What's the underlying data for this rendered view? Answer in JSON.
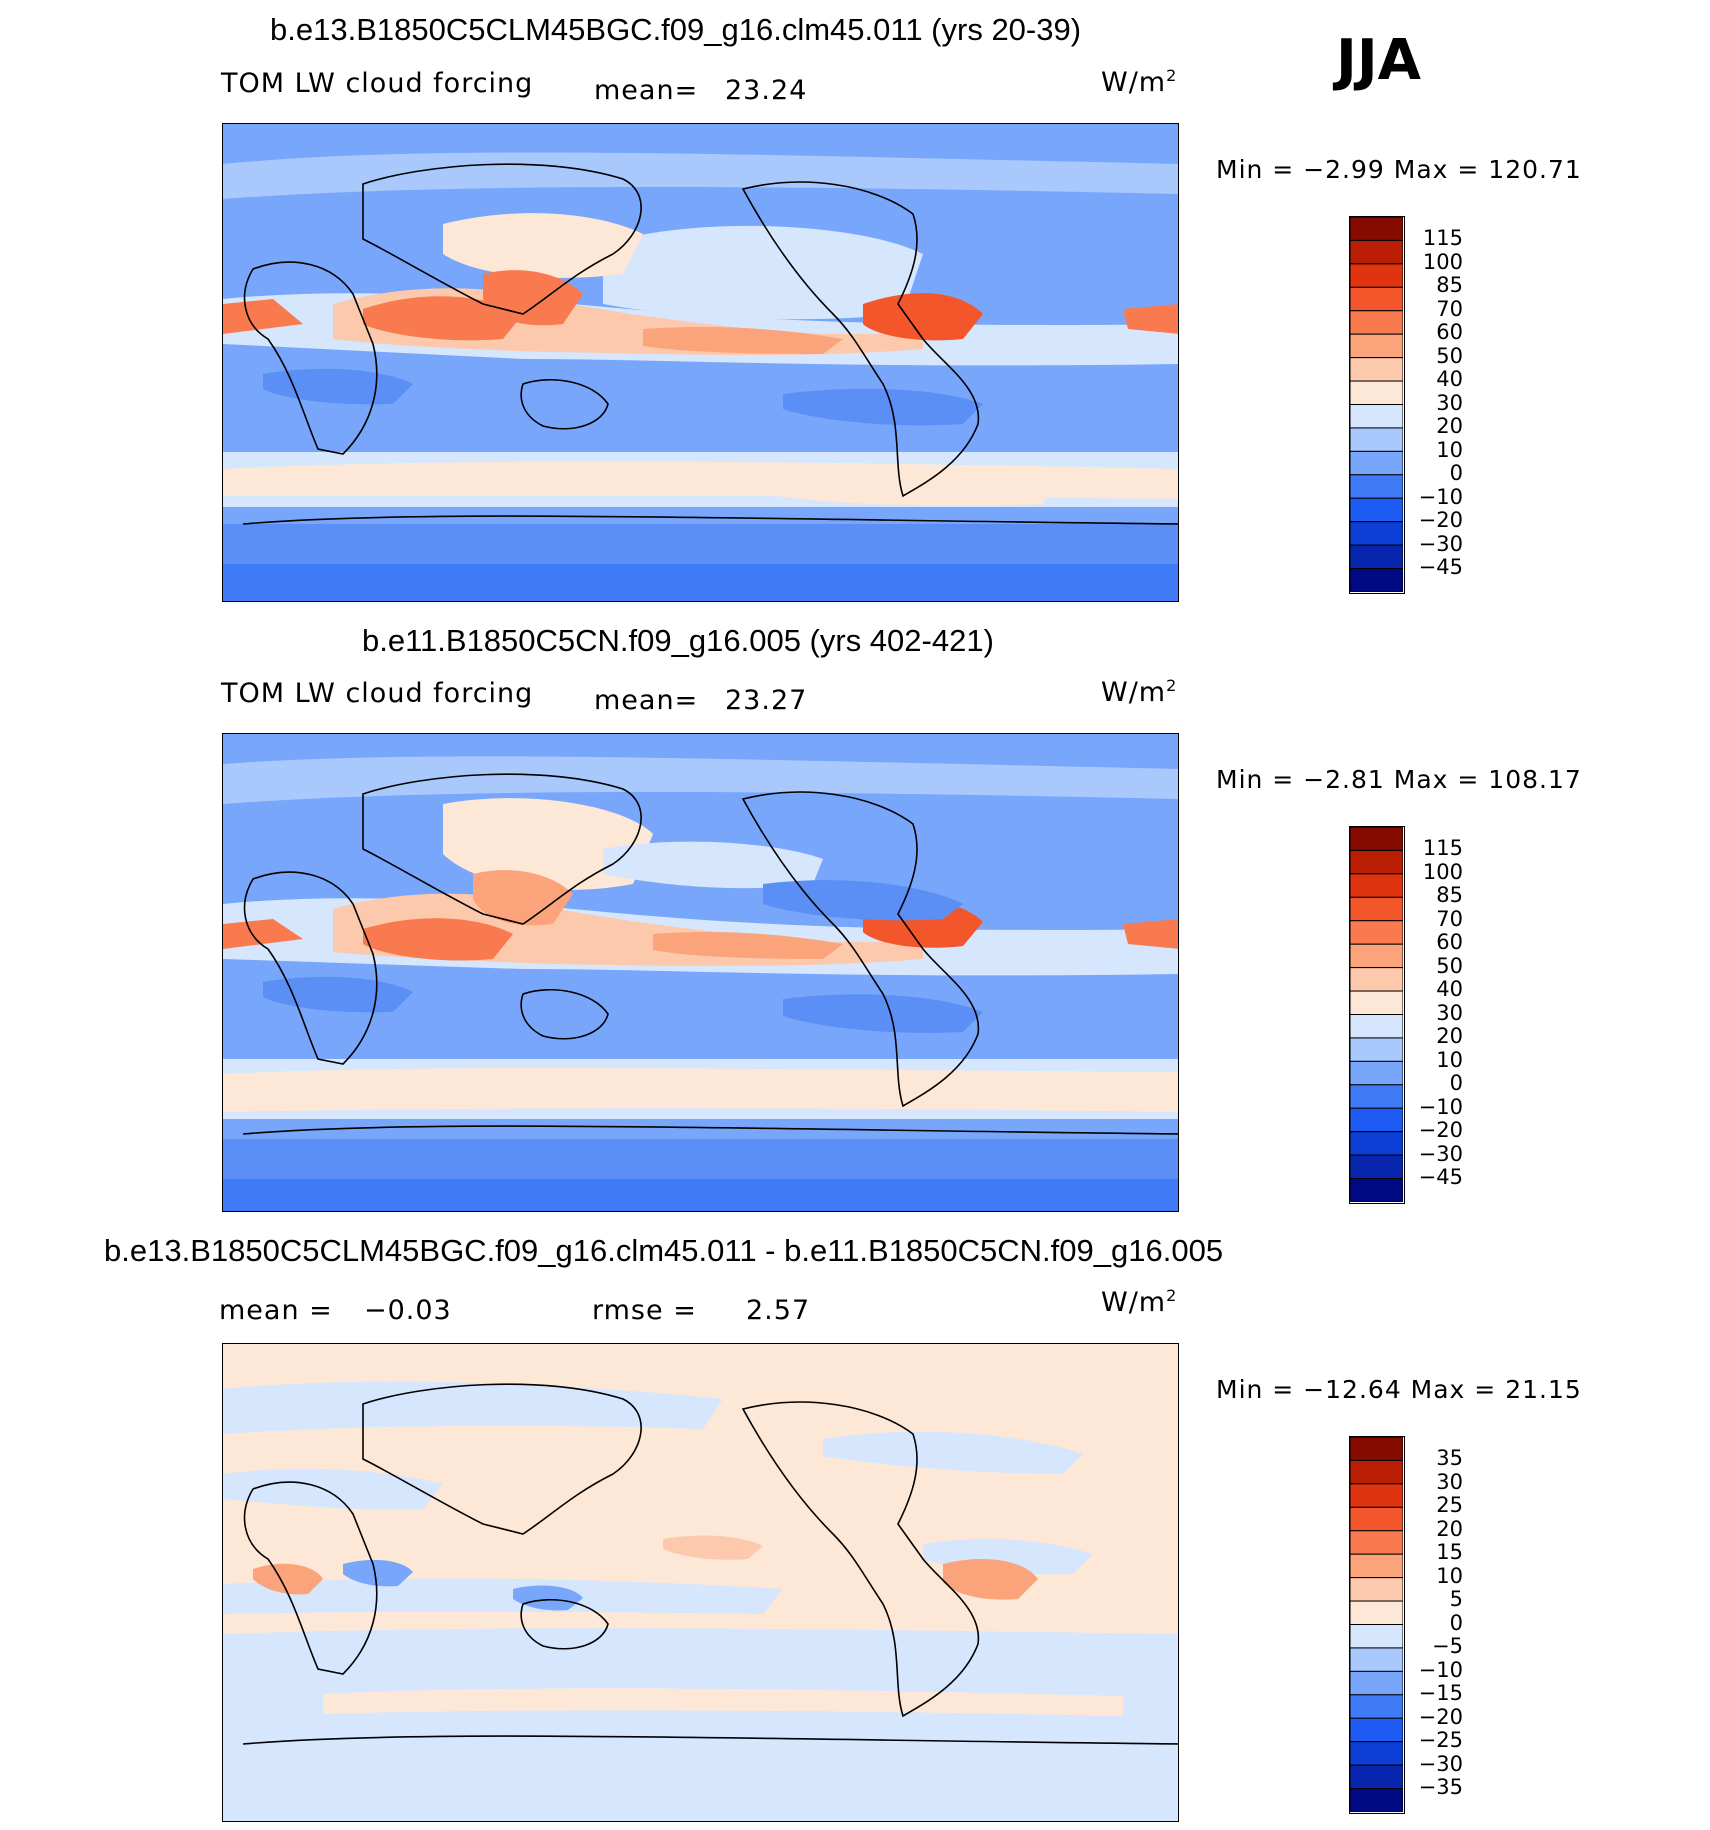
{
  "season": "JJA",
  "units": "W/m",
  "units_exp": "2",
  "panels": [
    {
      "title": "b.e13.B1850C5CLM45BGC.f09_g16.clm45.011 (yrs 20-39)",
      "variable": "TOM LW cloud forcing",
      "mean_label": "mean=",
      "mean_value": "23.24",
      "minmax": "Min =   −2.99  Max  =  120.71"
    },
    {
      "title": "b.e11.B1850C5CN.f09_g16.005 (yrs 402-421)",
      "variable": "TOM LW cloud forcing",
      "mean_label": "mean=",
      "mean_value": "23.27",
      "minmax": "Min =   −2.81  Max  =  108.17"
    },
    {
      "title": "b.e13.B1850C5CLM45BGC.f09_g16.clm45.011 - b.e11.B1850C5CN.f09_g16.005",
      "mean_label": "mean =",
      "mean_value": "−0.03",
      "rmse_label": "rmse =",
      "rmse_value": "2.57",
      "minmax": "Min =  −12.64  Max =    21.15"
    }
  ],
  "chart_data": [
    {
      "type": "heatmap",
      "title": "b.e13.B1850C5CLM45BGC.f09_g16.clm45.011 (yrs 20-39)",
      "subtitle": "TOM LW cloud forcing",
      "units": "W/m2",
      "mean": 23.24,
      "min": -2.99,
      "max": 120.71,
      "colorbar_levels": [
        -45,
        -30,
        -20,
        -10,
        0,
        10,
        20,
        30,
        40,
        50,
        60,
        70,
        85,
        100,
        115
      ],
      "colorbar_colors": [
        "#000a82",
        "#0826ad",
        "#0d3fd6",
        "#1e5bf2",
        "#3f7bf7",
        "#78a6fa",
        "#a9c8fc",
        "#d5e6fd",
        "#fde8d8",
        "#fcc9ac",
        "#fba37a",
        "#f97a4f",
        "#f3562a",
        "#e03411",
        "#b91d04",
        "#850a00"
      ]
    },
    {
      "type": "heatmap",
      "title": "b.e11.B1850C5CN.f09_g16.005 (yrs 402-421)",
      "subtitle": "TOM LW cloud forcing",
      "units": "W/m2",
      "mean": 23.27,
      "min": -2.81,
      "max": 108.17,
      "colorbar_levels": [
        -45,
        -30,
        -20,
        -10,
        0,
        10,
        20,
        30,
        40,
        50,
        60,
        70,
        85,
        100,
        115
      ],
      "colorbar_colors": [
        "#000a82",
        "#0826ad",
        "#0d3fd6",
        "#1e5bf2",
        "#3f7bf7",
        "#78a6fa",
        "#a9c8fc",
        "#d5e6fd",
        "#fde8d8",
        "#fcc9ac",
        "#fba37a",
        "#f97a4f",
        "#f3562a",
        "#e03411",
        "#b91d04",
        "#850a00"
      ]
    },
    {
      "type": "heatmap",
      "title": "b.e13.B1850C5CLM45BGC.f09_g16.clm45.011 - b.e11.B1850C5CN.f09_g16.005",
      "units": "W/m2",
      "mean": -0.03,
      "rmse": 2.57,
      "min": -12.64,
      "max": 21.15,
      "colorbar_levels": [
        -35,
        -30,
        -25,
        -20,
        -15,
        -10,
        -5,
        0,
        5,
        10,
        15,
        20,
        25,
        30,
        35
      ],
      "colorbar_colors": [
        "#000a82",
        "#0826ad",
        "#0d3fd6",
        "#1e5bf2",
        "#3f7bf7",
        "#78a6fa",
        "#a9c8fc",
        "#d5e6fd",
        "#fde8d8",
        "#fcc9ac",
        "#fba37a",
        "#f97a4f",
        "#f3562a",
        "#e03411",
        "#b91d04",
        "#850a00"
      ]
    }
  ]
}
